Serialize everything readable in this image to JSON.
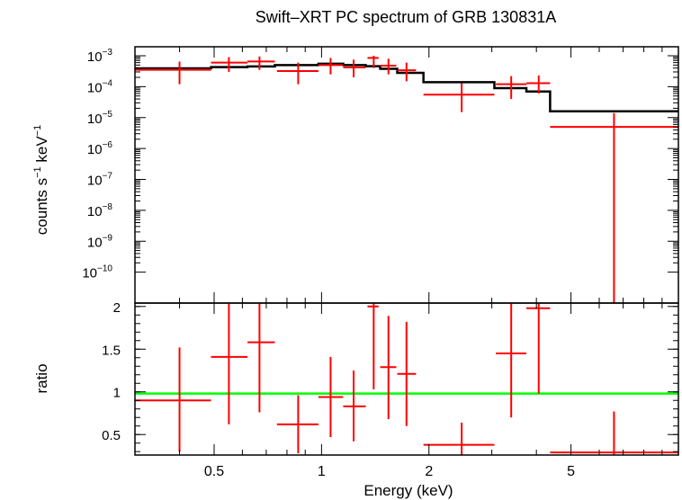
{
  "chart_data": {
    "type": "scatter",
    "title": "Swift–XRT PC spectrum of GRB 130831A",
    "xlabel": "Energy (keV)",
    "x_scale": "log",
    "x_range": [
      0.3,
      10
    ],
    "x_ticks": [
      0.5,
      1,
      2,
      5
    ],
    "x_tick_labels": [
      "0.5",
      "1",
      "2",
      "5"
    ],
    "colors": {
      "data": "#ff0000",
      "model": "#000000",
      "ratio_line": "#00ff00",
      "frame": "#000000"
    },
    "top_panel": {
      "ylabel_main": "counts s",
      "ylabel_exp1": "−1",
      "ylabel_mid": " keV",
      "ylabel_exp2": "−1",
      "y_scale": "log",
      "y_range": [
        1e-11,
        0.001
      ],
      "y_ticks": [
        {
          "value": 0.001,
          "mantissa": "10",
          "exponent": "−3"
        },
        {
          "value": 0.0001,
          "mantissa": "10",
          "exponent": "−4"
        },
        {
          "value": 1e-05,
          "mantissa": "10",
          "exponent": "−5"
        },
        {
          "value": 1e-06,
          "mantissa": "10",
          "exponent": "−6"
        },
        {
          "value": 1e-07,
          "mantissa": "10",
          "exponent": "−7"
        },
        {
          "value": 1e-08,
          "mantissa": "10",
          "exponent": "−8"
        },
        {
          "value": 1e-09,
          "mantissa": "10",
          "exponent": "−9"
        },
        {
          "value": 1e-10,
          "mantissa": "10",
          "exponent": "−10"
        }
      ],
      "data_points": [
        {
          "x": 0.4,
          "xlo": 0.3,
          "xhi": 0.49,
          "y": 0.00035,
          "ylo": 0.00012,
          "yhi": 0.00065
        },
        {
          "x": 0.55,
          "xlo": 0.49,
          "xhi": 0.62,
          "y": 0.0006,
          "ylo": 0.0003,
          "yhi": 0.0009
        },
        {
          "x": 0.67,
          "xlo": 0.62,
          "xhi": 0.74,
          "y": 0.00065,
          "ylo": 0.00035,
          "yhi": 0.00095
        },
        {
          "x": 0.86,
          "xlo": 0.75,
          "xhi": 0.98,
          "y": 0.00032,
          "ylo": 0.00012,
          "yhi": 0.0006
        },
        {
          "x": 1.06,
          "xlo": 0.98,
          "xhi": 1.15,
          "y": 0.0005,
          "ylo": 0.00025,
          "yhi": 0.00085
        },
        {
          "x": 1.23,
          "xlo": 1.15,
          "xhi": 1.33,
          "y": 0.00042,
          "ylo": 0.0002,
          "yhi": 0.00075
        },
        {
          "x": 1.4,
          "xlo": 1.345,
          "xhi": 1.445,
          "y": 0.00085,
          "ylo": 0.0004,
          "yhi": 0.001
        },
        {
          "x": 1.54,
          "xlo": 1.46,
          "xhi": 1.62,
          "y": 0.00048,
          "ylo": 0.00025,
          "yhi": 0.0008
        },
        {
          "x": 1.73,
          "xlo": 1.63,
          "xhi": 1.84,
          "y": 0.00034,
          "ylo": 0.00015,
          "yhi": 0.0006
        },
        {
          "x": 2.47,
          "xlo": 1.93,
          "xhi": 3.05,
          "y": 5.5e-05,
          "ylo": 1.5e-05,
          "yhi": 0.00013
        },
        {
          "x": 3.4,
          "xlo": 3.08,
          "xhi": 3.75,
          "y": 0.00012,
          "ylo": 4e-05,
          "yhi": 0.00022
        },
        {
          "x": 4.06,
          "xlo": 3.75,
          "xhi": 4.37,
          "y": 0.00013,
          "ylo": 6e-05,
          "yhi": 0.00023
        },
        {
          "x": 6.6,
          "xlo": 4.37,
          "xhi": 10.0,
          "y": 5e-06,
          "ylo": 1e-11,
          "yhi": 1.4e-05
        }
      ],
      "model_steps": [
        {
          "x0": 0.3,
          "x1": 0.49,
          "y": 0.00039
        },
        {
          "x0": 0.49,
          "x1": 0.62,
          "y": 0.00043
        },
        {
          "x0": 0.62,
          "x1": 0.74,
          "y": 0.00045
        },
        {
          "x0": 0.74,
          "x1": 0.98,
          "y": 0.0005
        },
        {
          "x0": 0.98,
          "x1": 1.15,
          "y": 0.00055
        },
        {
          "x0": 1.15,
          "x1": 1.33,
          "y": 0.0005
        },
        {
          "x0": 1.33,
          "x1": 1.46,
          "y": 0.00046
        },
        {
          "x0": 1.46,
          "x1": 1.63,
          "y": 0.00038
        },
        {
          "x0": 1.63,
          "x1": 1.93,
          "y": 0.00028
        },
        {
          "x0": 1.93,
          "x1": 3.05,
          "y": 0.00014
        },
        {
          "x0": 3.05,
          "x1": 3.75,
          "y": 9e-05
        },
        {
          "x0": 3.75,
          "x1": 4.37,
          "y": 7e-05
        },
        {
          "x0": 4.37,
          "x1": 10.0,
          "y": 1.6e-05
        }
      ]
    },
    "bottom_panel": {
      "ylabel": "ratio",
      "y_scale": "linear",
      "y_range": [
        0.26,
        2.04
      ],
      "y_ticks": [
        0.5,
        1,
        1.5,
        2
      ],
      "y_tick_labels": [
        "0.5",
        "1",
        "1.5",
        "2"
      ],
      "reference_line": 0.98,
      "data_points": [
        {
          "x": 0.4,
          "xlo": 0.3,
          "xhi": 0.49,
          "y": 0.9,
          "ylo": 0.3,
          "yhi": 1.52
        },
        {
          "x": 0.55,
          "xlo": 0.49,
          "xhi": 0.62,
          "y": 1.41,
          "ylo": 0.62,
          "yhi": 2.04
        },
        {
          "x": 0.67,
          "xlo": 0.62,
          "xhi": 0.74,
          "y": 1.58,
          "ylo": 0.76,
          "yhi": 2.04
        },
        {
          "x": 0.86,
          "xlo": 0.75,
          "xhi": 0.98,
          "y": 0.62,
          "ylo": 0.28,
          "yhi": 0.96
        },
        {
          "x": 1.06,
          "xlo": 0.98,
          "xhi": 1.15,
          "y": 0.94,
          "ylo": 0.47,
          "yhi": 1.41
        },
        {
          "x": 1.23,
          "xlo": 1.15,
          "xhi": 1.33,
          "y": 0.83,
          "ylo": 0.42,
          "yhi": 1.25
        },
        {
          "x": 1.4,
          "xlo": 1.345,
          "xhi": 1.445,
          "y": 2.0,
          "ylo": 1.03,
          "yhi": 2.04
        },
        {
          "x": 1.54,
          "xlo": 1.46,
          "xhi": 1.62,
          "y": 1.29,
          "ylo": 0.68,
          "yhi": 1.89
        },
        {
          "x": 1.73,
          "xlo": 1.63,
          "xhi": 1.84,
          "y": 1.21,
          "ylo": 0.6,
          "yhi": 1.82
        },
        {
          "x": 2.47,
          "xlo": 1.93,
          "xhi": 3.05,
          "y": 0.38,
          "ylo": 0.26,
          "yhi": 0.64
        },
        {
          "x": 3.4,
          "xlo": 3.08,
          "xhi": 3.75,
          "y": 1.45,
          "ylo": 0.7,
          "yhi": 2.04
        },
        {
          "x": 4.06,
          "xlo": 3.75,
          "xhi": 4.37,
          "y": 1.98,
          "ylo": 0.98,
          "yhi": 2.04
        },
        {
          "x": 6.6,
          "xlo": 4.37,
          "xhi": 10.0,
          "y": 0.29,
          "ylo": 0.26,
          "yhi": 0.77
        }
      ]
    }
  }
}
